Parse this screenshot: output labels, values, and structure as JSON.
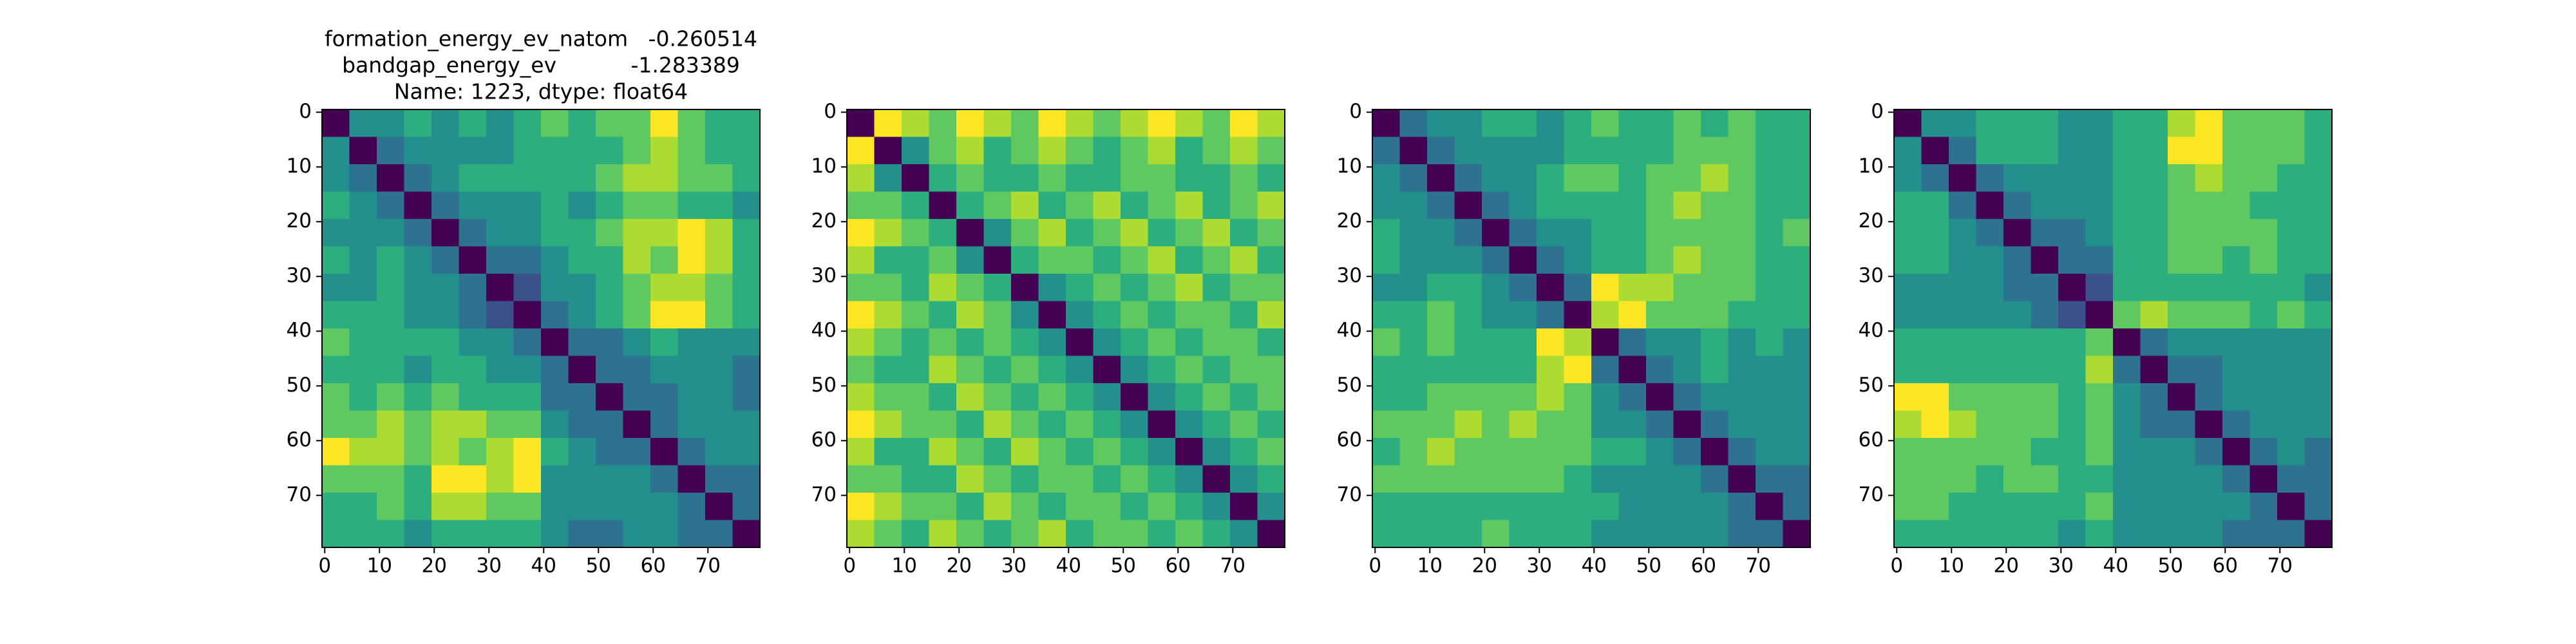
{
  "chart_data": [
    {
      "type": "heatmap",
      "colormap": "viridis",
      "title": [
        "formation_energy_ev_natom   -0.260514",
        "bandgap_energy_ev           -1.283389",
        "Name: 1223, dtype: float64"
      ],
      "xlim": [
        -0.5,
        79.5
      ],
      "ylim": [
        79.5,
        -0.5
      ],
      "xticks": [
        0,
        10,
        20,
        30,
        40,
        50,
        60,
        70
      ],
      "yticks": [
        0,
        10,
        20,
        30,
        40,
        50,
        60,
        70
      ],
      "values": [
        [
          0,
          4,
          4,
          5,
          4,
          5,
          4,
          5,
          6,
          5,
          6,
          6,
          8,
          6,
          5,
          5
        ],
        [
          4,
          0,
          3,
          4,
          4,
          4,
          4,
          5,
          5,
          5,
          5,
          6,
          7,
          6,
          5,
          5
        ],
        [
          4,
          3,
          0,
          3,
          4,
          5,
          5,
          5,
          5,
          5,
          6,
          7,
          7,
          6,
          6,
          5
        ],
        [
          5,
          4,
          3,
          0,
          3,
          4,
          4,
          4,
          5,
          4,
          5,
          6,
          6,
          5,
          5,
          4
        ],
        [
          4,
          4,
          4,
          3,
          0,
          3,
          4,
          4,
          5,
          5,
          6,
          7,
          7,
          8,
          7,
          5
        ],
        [
          5,
          4,
          5,
          4,
          3,
          0,
          3,
          3,
          4,
          5,
          5,
          7,
          6,
          8,
          7,
          5
        ],
        [
          4,
          4,
          5,
          4,
          4,
          3,
          0,
          2,
          4,
          4,
          5,
          6,
          7,
          7,
          6,
          5
        ],
        [
          5,
          5,
          5,
          4,
          4,
          3,
          2,
          0,
          3,
          4,
          5,
          6,
          8,
          8,
          6,
          5
        ],
        [
          6,
          5,
          5,
          5,
          5,
          4,
          4,
          3,
          0,
          3,
          3,
          4,
          5,
          4,
          4,
          4
        ],
        [
          5,
          5,
          5,
          4,
          5,
          5,
          4,
          4,
          3,
          0,
          3,
          3,
          4,
          4,
          4,
          3
        ],
        [
          6,
          5,
          6,
          5,
          6,
          5,
          5,
          5,
          3,
          3,
          0,
          3,
          3,
          4,
          4,
          3
        ],
        [
          6,
          6,
          7,
          6,
          7,
          7,
          6,
          6,
          4,
          3,
          3,
          0,
          3,
          4,
          4,
          4
        ],
        [
          8,
          7,
          7,
          6,
          7,
          6,
          7,
          8,
          5,
          4,
          3,
          3,
          0,
          3,
          4,
          4
        ],
        [
          6,
          6,
          6,
          5,
          8,
          8,
          7,
          8,
          4,
          4,
          4,
          4,
          3,
          0,
          3,
          3
        ],
        [
          5,
          5,
          6,
          5,
          7,
          7,
          6,
          6,
          4,
          4,
          4,
          4,
          4,
          3,
          0,
          3
        ],
        [
          5,
          5,
          5,
          4,
          5,
          5,
          5,
          5,
          4,
          3,
          3,
          4,
          4,
          3,
          3,
          0
        ]
      ]
    },
    {
      "type": "heatmap",
      "colormap": "viridis",
      "xlim": [
        -0.5,
        79.5
      ],
      "ylim": [
        79.5,
        -0.5
      ],
      "xticks": [
        0,
        10,
        20,
        30,
        40,
        50,
        60,
        70
      ],
      "yticks": [
        0,
        10,
        20,
        30,
        40,
        50,
        60,
        70
      ],
      "values": [
        [
          0,
          8,
          7,
          6,
          8,
          7,
          6,
          8,
          7,
          6,
          7,
          8,
          7,
          6,
          8,
          7
        ],
        [
          8,
          0,
          4,
          6,
          7,
          5,
          6,
          7,
          6,
          5,
          6,
          7,
          5,
          6,
          7,
          6
        ],
        [
          7,
          4,
          0,
          5,
          6,
          5,
          5,
          6,
          5,
          5,
          6,
          6,
          5,
          5,
          6,
          5
        ],
        [
          6,
          6,
          5,
          0,
          5,
          6,
          7,
          5,
          6,
          7,
          5,
          6,
          7,
          5,
          6,
          7
        ],
        [
          8,
          7,
          6,
          5,
          0,
          4,
          6,
          7,
          5,
          6,
          7,
          5,
          6,
          7,
          5,
          6
        ],
        [
          7,
          5,
          5,
          6,
          4,
          0,
          5,
          6,
          6,
          5,
          6,
          7,
          5,
          6,
          7,
          5
        ],
        [
          6,
          6,
          5,
          7,
          6,
          5,
          0,
          4,
          5,
          6,
          5,
          6,
          7,
          5,
          6,
          6
        ],
        [
          8,
          7,
          6,
          5,
          7,
          6,
          4,
          0,
          4,
          5,
          6,
          5,
          6,
          6,
          5,
          7
        ],
        [
          7,
          6,
          5,
          6,
          5,
          6,
          5,
          4,
          0,
          4,
          5,
          6,
          5,
          6,
          6,
          5
        ],
        [
          6,
          5,
          5,
          7,
          6,
          5,
          6,
          5,
          4,
          0,
          4,
          5,
          6,
          5,
          6,
          6
        ],
        [
          7,
          6,
          6,
          5,
          7,
          6,
          5,
          6,
          5,
          4,
          0,
          4,
          5,
          6,
          5,
          6
        ],
        [
          8,
          7,
          6,
          6,
          5,
          7,
          6,
          5,
          6,
          5,
          4,
          0,
          4,
          5,
          6,
          5
        ],
        [
          7,
          5,
          5,
          7,
          6,
          5,
          7,
          6,
          5,
          6,
          5,
          4,
          0,
          4,
          5,
          6
        ],
        [
          6,
          6,
          5,
          5,
          7,
          6,
          5,
          6,
          6,
          5,
          6,
          5,
          4,
          0,
          4,
          5
        ],
        [
          8,
          7,
          6,
          6,
          5,
          7,
          6,
          5,
          6,
          6,
          5,
          6,
          5,
          4,
          0,
          4
        ],
        [
          7,
          6,
          5,
          7,
          6,
          5,
          6,
          7,
          5,
          6,
          6,
          5,
          6,
          5,
          4,
          0
        ]
      ]
    },
    {
      "type": "heatmap",
      "colormap": "viridis",
      "xlim": [
        -0.5,
        79.5
      ],
      "ylim": [
        79.5,
        -0.5
      ],
      "xticks": [
        0,
        10,
        20,
        30,
        40,
        50,
        60,
        70
      ],
      "yticks": [
        0,
        10,
        20,
        30,
        40,
        50,
        60,
        70
      ],
      "values": [
        [
          0,
          3,
          4,
          4,
          5,
          5,
          4,
          5,
          6,
          5,
          5,
          6,
          5,
          6,
          5,
          5
        ],
        [
          3,
          0,
          3,
          4,
          4,
          4,
          4,
          5,
          5,
          5,
          5,
          6,
          6,
          6,
          5,
          5
        ],
        [
          4,
          3,
          0,
          3,
          4,
          4,
          5,
          6,
          6,
          5,
          6,
          6,
          7,
          6,
          5,
          5
        ],
        [
          4,
          4,
          3,
          0,
          3,
          4,
          5,
          5,
          5,
          5,
          6,
          7,
          6,
          6,
          5,
          5
        ],
        [
          5,
          4,
          4,
          3,
          0,
          3,
          4,
          4,
          5,
          5,
          6,
          6,
          6,
          6,
          5,
          6
        ],
        [
          5,
          4,
          4,
          4,
          3,
          0,
          3,
          4,
          5,
          5,
          6,
          7,
          6,
          6,
          5,
          5
        ],
        [
          4,
          4,
          5,
          5,
          4,
          3,
          0,
          3,
          8,
          7,
          7,
          6,
          6,
          6,
          5,
          5
        ],
        [
          5,
          5,
          6,
          5,
          4,
          4,
          3,
          0,
          7,
          8,
          6,
          6,
          6,
          5,
          5,
          5
        ],
        [
          6,
          5,
          6,
          5,
          5,
          5,
          8,
          7,
          0,
          3,
          4,
          4,
          5,
          4,
          5,
          4
        ],
        [
          5,
          5,
          5,
          5,
          5,
          5,
          7,
          8,
          3,
          0,
          3,
          4,
          5,
          4,
          4,
          4
        ],
        [
          5,
          5,
          6,
          6,
          6,
          6,
          7,
          6,
          4,
          3,
          0,
          3,
          4,
          4,
          4,
          4
        ],
        [
          6,
          6,
          6,
          7,
          6,
          7,
          6,
          6,
          4,
          4,
          3,
          0,
          3,
          4,
          4,
          4
        ],
        [
          5,
          6,
          7,
          6,
          6,
          6,
          6,
          6,
          5,
          5,
          4,
          3,
          0,
          3,
          4,
          4
        ],
        [
          6,
          6,
          6,
          6,
          6,
          6,
          6,
          5,
          4,
          4,
          4,
          4,
          3,
          0,
          3,
          3
        ],
        [
          5,
          5,
          5,
          5,
          5,
          5,
          5,
          5,
          5,
          4,
          4,
          4,
          4,
          3,
          0,
          3
        ],
        [
          5,
          5,
          5,
          5,
          6,
          5,
          5,
          5,
          4,
          4,
          4,
          4,
          4,
          3,
          3,
          0
        ]
      ]
    },
    {
      "type": "heatmap",
      "colormap": "viridis",
      "xlim": [
        -0.5,
        79.5
      ],
      "ylim": [
        79.5,
        -0.5
      ],
      "xticks": [
        0,
        10,
        20,
        30,
        40,
        50,
        60,
        70
      ],
      "yticks": [
        0,
        10,
        20,
        30,
        40,
        50,
        60,
        70
      ],
      "values": [
        [
          0,
          4,
          4,
          5,
          5,
          5,
          4,
          4,
          5,
          5,
          7,
          8,
          6,
          6,
          6,
          5
        ],
        [
          4,
          0,
          3,
          5,
          5,
          5,
          4,
          4,
          5,
          5,
          8,
          8,
          6,
          6,
          6,
          5
        ],
        [
          4,
          3,
          0,
          3,
          4,
          4,
          4,
          4,
          5,
          5,
          6,
          7,
          6,
          6,
          5,
          5
        ],
        [
          5,
          5,
          3,
          0,
          3,
          4,
          4,
          4,
          5,
          5,
          6,
          6,
          6,
          5,
          5,
          5
        ],
        [
          5,
          5,
          4,
          3,
          0,
          3,
          3,
          4,
          5,
          5,
          6,
          6,
          6,
          6,
          5,
          5
        ],
        [
          5,
          5,
          4,
          4,
          3,
          0,
          3,
          3,
          5,
          5,
          6,
          6,
          5,
          6,
          5,
          5
        ],
        [
          4,
          4,
          4,
          4,
          3,
          3,
          0,
          2,
          5,
          5,
          5,
          5,
          5,
          5,
          5,
          4
        ],
        [
          4,
          4,
          4,
          4,
          4,
          3,
          2,
          0,
          6,
          7,
          6,
          6,
          6,
          5,
          6,
          5
        ],
        [
          5,
          5,
          5,
          5,
          5,
          5,
          5,
          6,
          0,
          3,
          4,
          4,
          4,
          4,
          4,
          4
        ],
        [
          5,
          5,
          5,
          5,
          5,
          5,
          5,
          7,
          3,
          0,
          3,
          3,
          4,
          4,
          4,
          4
        ],
        [
          8,
          8,
          6,
          6,
          6,
          6,
          5,
          6,
          4,
          3,
          0,
          3,
          4,
          4,
          4,
          4
        ],
        [
          7,
          8,
          7,
          6,
          6,
          6,
          5,
          6,
          4,
          3,
          3,
          0,
          3,
          4,
          4,
          4
        ],
        [
          6,
          6,
          6,
          6,
          6,
          5,
          5,
          6,
          4,
          4,
          4,
          3,
          0,
          3,
          4,
          3
        ],
        [
          6,
          6,
          6,
          5,
          6,
          6,
          5,
          5,
          4,
          4,
          4,
          4,
          3,
          0,
          3,
          3
        ],
        [
          6,
          6,
          5,
          5,
          5,
          5,
          5,
          6,
          4,
          4,
          4,
          4,
          4,
          3,
          0,
          3
        ],
        [
          5,
          5,
          5,
          5,
          5,
          5,
          4,
          5,
          4,
          4,
          4,
          4,
          3,
          3,
          3,
          0
        ]
      ]
    }
  ]
}
